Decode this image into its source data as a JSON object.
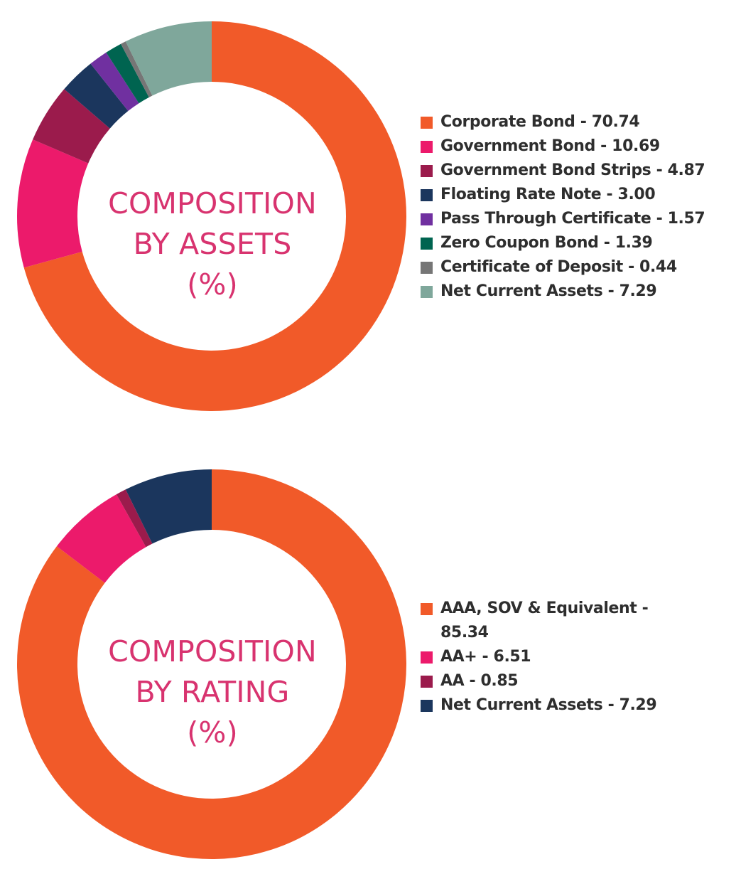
{
  "chart_data": [
    {
      "type": "pie",
      "center_title": [
        "COMPOSITION",
        "BY ASSETS",
        "(%)"
      ],
      "legend_position": "right",
      "series": [
        {
          "label": "Corporate Bond - 70.74",
          "value": 70.74,
          "color": "#f15a29"
        },
        {
          "label": "Government Bond - 10.69",
          "value": 10.69,
          "color": "#ec1a6b"
        },
        {
          "label": "Government Bond Strips - 4.87",
          "value": 4.87,
          "color": "#9b1b4c"
        },
        {
          "label": "Floating Rate Note - 3.00",
          "value": 3.0,
          "color": "#1b365d"
        },
        {
          "label": "Pass Through Certificate - 1.57",
          "value": 1.57,
          "color": "#7030a0"
        },
        {
          "label": "Zero Coupon Bond - 1.39",
          "value": 1.39,
          "color": "#006450"
        },
        {
          "label": "Certificate of Deposit - 0.44",
          "value": 0.44,
          "color": "#767676"
        },
        {
          "label": "Net Current Assets - 7.29",
          "value": 7.29,
          "color": "#7fa79b"
        }
      ]
    },
    {
      "type": "pie",
      "center_title": [
        "COMPOSITION",
        "BY RATING",
        "(%)"
      ],
      "legend_position": "right",
      "series": [
        {
          "label": "AAA, SOV & Equivalent - 85.34",
          "value": 85.34,
          "color": "#f15a29"
        },
        {
          "label": "AA+ - 6.51",
          "value": 6.51,
          "color": "#ec1a6b"
        },
        {
          "label": "AA - 0.85",
          "value": 0.85,
          "color": "#9b1b4c"
        },
        {
          "label": "Net Current Assets - 7.29",
          "value": 7.29,
          "color": "#1b365d"
        }
      ]
    }
  ]
}
